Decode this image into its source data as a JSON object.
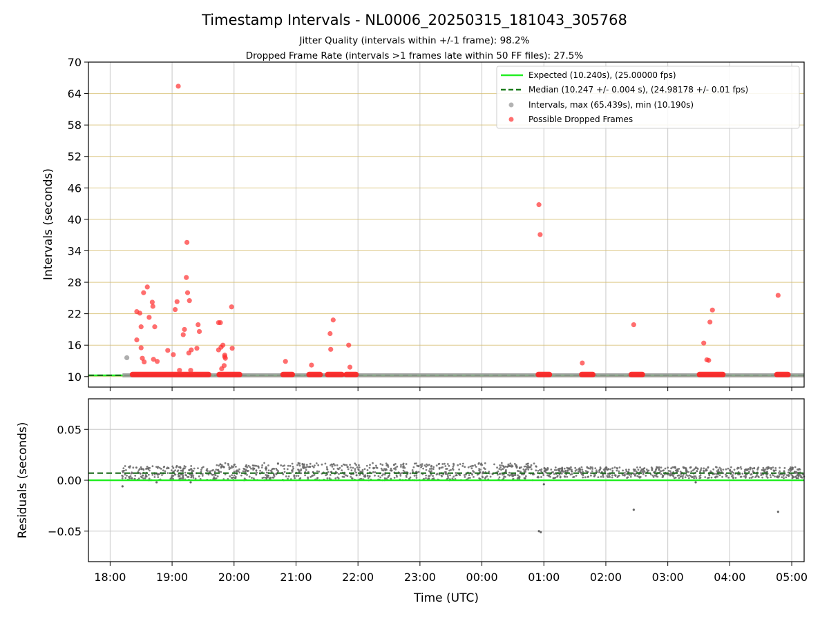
{
  "chart_data": [
    {
      "type": "scatter",
      "title": "Timestamp Intervals - NL0006_20250315_181043_305768",
      "subtitle_lines": [
        "Jitter Quality (intervals within +/-1 frame): 98.2%",
        "Dropped Frame Rate (intervals >1 frames late within 50 FF files): 27.5%"
      ],
      "xlabel": "",
      "ylabel": "Intervals (seconds)",
      "x_unit": "hours since 18:00 UTC",
      "xlim": [
        -0.35,
        11.2
      ],
      "ylim": [
        8,
        70
      ],
      "yticks": [
        10,
        16,
        22,
        28,
        34,
        40,
        46,
        52,
        58,
        64,
        70
      ],
      "grid": true,
      "legend_position": "top-right",
      "legend": [
        "Expected (10.240s), (25.00000 fps)",
        "Median (10.247 +/- 0.004 s), (24.98178 +/- 0.01 fps)",
        "Intervals, max (65.439s), min (10.190s)",
        "Possible Dropped Frames"
      ],
      "expected_line": 10.24,
      "median_line": 10.247,
      "series": [
        {
          "name": "Intervals, max (65.439s), min (10.190s)",
          "color": "#a0a0a0",
          "band": {
            "x_range": [
              0.2,
              11.2
            ],
            "y": 10.24
          },
          "points": [
            [
              0.27,
              13.6
            ]
          ]
        },
        {
          "name": "Possible Dropped Frames",
          "color": "#ff3030",
          "band_segments": [
            [
              0.35,
              1.6
            ],
            [
              1.75,
              2.1
            ],
            [
              2.78,
              2.95
            ],
            [
              3.2,
              3.4
            ],
            [
              3.5,
              3.75
            ],
            [
              3.8,
              3.98
            ],
            [
              6.9,
              7.1
            ],
            [
              7.6,
              7.8
            ],
            [
              8.4,
              8.6
            ],
            [
              9.5,
              9.9
            ],
            [
              10.75,
              10.95
            ]
          ],
          "band_y": 10.4,
          "points": [
            [
              0.43,
              22.4
            ],
            [
              0.48,
              22.1
            ],
            [
              0.43,
              17.0
            ],
            [
              0.5,
              19.5
            ],
            [
              0.5,
              15.5
            ],
            [
              0.52,
              13.5
            ],
            [
              0.55,
              12.8
            ],
            [
              0.54,
              26.0
            ],
            [
              0.6,
              27.1
            ],
            [
              0.63,
              21.3
            ],
            [
              0.68,
              24.2
            ],
            [
              0.69,
              23.4
            ],
            [
              0.7,
              13.3
            ],
            [
              0.72,
              19.5
            ],
            [
              0.76,
              12.9
            ],
            [
              0.93,
              15.0
            ],
            [
              1.02,
              14.2
            ],
            [
              1.05,
              22.8
            ],
            [
              1.08,
              24.3
            ],
            [
              1.1,
              65.4
            ],
            [
              1.12,
              11.2
            ],
            [
              1.18,
              18.0
            ],
            [
              1.2,
              19.0
            ],
            [
              1.23,
              28.9
            ],
            [
              1.24,
              35.6
            ],
            [
              1.25,
              26.0
            ],
            [
              1.27,
              14.5
            ],
            [
              1.28,
              24.5
            ],
            [
              1.3,
              11.2
            ],
            [
              1.31,
              15.1
            ],
            [
              1.4,
              15.4
            ],
            [
              1.42,
              19.9
            ],
            [
              1.44,
              18.6
            ],
            [
              1.75,
              20.3
            ],
            [
              1.78,
              20.3
            ],
            [
              1.75,
              15.1
            ],
            [
              1.79,
              15.6
            ],
            [
              1.82,
              16.0
            ],
            [
              1.8,
              11.5
            ],
            [
              1.84,
              12.1
            ],
            [
              1.85,
              13.8
            ],
            [
              1.85,
              14.1
            ],
            [
              1.86,
              13.5
            ],
            [
              1.96,
              23.3
            ],
            [
              1.97,
              15.4
            ],
            [
              2.83,
              12.9
            ],
            [
              3.25,
              12.2
            ],
            [
              3.55,
              18.2
            ],
            [
              3.56,
              15.2
            ],
            [
              3.6,
              20.8
            ],
            [
              3.85,
              16.0
            ],
            [
              3.87,
              11.8
            ],
            [
              6.92,
              42.8
            ],
            [
              6.94,
              37.1
            ],
            [
              7.62,
              12.6
            ],
            [
              8.45,
              19.9
            ],
            [
              9.58,
              16.4
            ],
            [
              9.63,
              13.2
            ],
            [
              9.66,
              13.1
            ],
            [
              9.68,
              20.4
            ],
            [
              9.72,
              22.7
            ],
            [
              10.78,
              25.5
            ]
          ]
        }
      ]
    },
    {
      "type": "scatter",
      "ylabel": "Residuals (seconds)",
      "xlabel": "Time (UTC)",
      "xlim": [
        -0.35,
        11.2
      ],
      "ylim": [
        -0.08,
        0.08
      ],
      "yticks": [
        0.05,
        0.0,
        -0.05
      ],
      "ytick_labels": [
        "0.05",
        "0.00",
        "−0.05"
      ],
      "xticks": [
        0,
        1,
        2,
        3,
        4,
        5,
        6,
        7,
        8,
        9,
        10,
        11
      ],
      "xtick_labels": [
        "18:00",
        "19:00",
        "20:00",
        "21:00",
        "22:00",
        "23:00",
        "00:00",
        "01:00",
        "02:00",
        "03:00",
        "04:00",
        "05:00"
      ],
      "grid": true,
      "expected_line": 0.0,
      "median_line": 0.007,
      "series": [
        {
          "name": "Residuals",
          "color": "#666666",
          "dense_segments": [
            {
              "x_range": [
                0.18,
                1.6
              ],
              "y_range": [
                0.0,
                0.014
              ]
            },
            {
              "x_range": [
                1.6,
                6.9
              ],
              "y_range": [
                0.0,
                0.017
              ]
            },
            {
              "x_range": [
                6.9,
                11.2
              ],
              "y_range": [
                0.002,
                0.013
              ]
            }
          ],
          "outliers": [
            [
              0.2,
              -0.006
            ],
            [
              0.75,
              -0.002
            ],
            [
              1.3,
              -0.002
            ],
            [
              6.92,
              -0.05
            ],
            [
              6.95,
              -0.051
            ],
            [
              8.45,
              -0.029
            ],
            [
              10.78,
              -0.031
            ],
            [
              7.0,
              -0.004
            ],
            [
              9.45,
              -0.002
            ]
          ]
        }
      ]
    }
  ]
}
